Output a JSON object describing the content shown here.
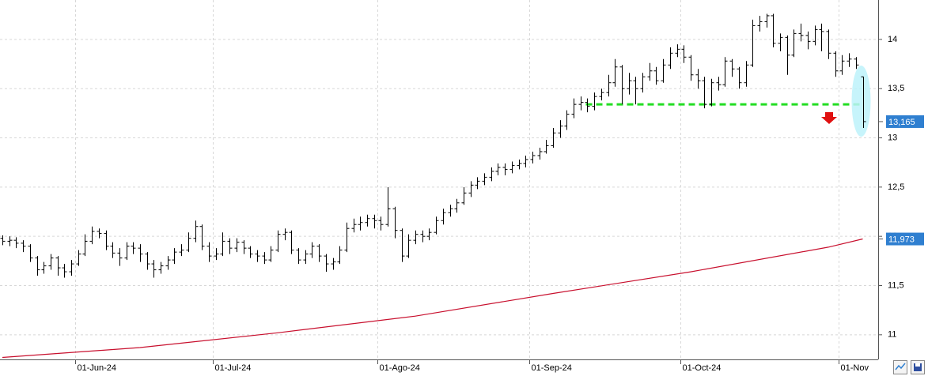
{
  "chart_data": {
    "type": "ohlc",
    "bar_color": "#000000",
    "grid": true,
    "categories": [
      null,
      null,
      null,
      null,
      null,
      null,
      null,
      null,
      null,
      null,
      null,
      "01-Jun-24",
      null,
      null,
      null,
      null,
      null,
      null,
      null,
      null,
      null,
      null,
      null,
      null,
      null,
      null,
      null,
      null,
      null,
      null,
      null,
      "01-Jul-24",
      null,
      null,
      null,
      null,
      null,
      null,
      null,
      null,
      null,
      null,
      null,
      null,
      null,
      null,
      null,
      null,
      null,
      null,
      null,
      null,
      null,
      null,
      null,
      "01-Ago-24",
      null,
      null,
      null,
      null,
      null,
      null,
      null,
      null,
      null,
      null,
      null,
      null,
      null,
      null,
      null,
      null,
      null,
      null,
      null,
      null,
      null,
      "01-Sep-24",
      null,
      null,
      null,
      null,
      null,
      null,
      null,
      null,
      null,
      null,
      null,
      null,
      null,
      null,
      null,
      null,
      null,
      null,
      null,
      null,
      null,
      "01-Oct-24",
      null,
      null,
      null,
      null,
      null,
      null,
      null,
      null,
      null,
      null,
      null,
      null,
      null,
      null,
      null,
      null,
      null,
      null,
      null,
      null,
      null,
      null,
      "01-Nov",
      null,
      null,
      null
    ],
    "ohlc": {
      "open": [
        11.98,
        11.95,
        11.96,
        11.93,
        11.9,
        11.78,
        11.66,
        11.7,
        11.78,
        11.68,
        11.64,
        11.72,
        11.82,
        11.95,
        12.05,
        12.03,
        11.9,
        11.83,
        11.78,
        11.9,
        11.88,
        11.82,
        11.72,
        11.66,
        11.7,
        11.76,
        11.84,
        11.86,
        11.98,
        12.1,
        11.9,
        11.8,
        11.82,
        11.95,
        11.88,
        11.94,
        11.88,
        11.82,
        11.8,
        11.76,
        11.86,
        12.02,
        12.04,
        11.86,
        11.76,
        11.82,
        11.9,
        11.8,
        11.72,
        11.74,
        11.86,
        12.08,
        12.12,
        12.14,
        12.18,
        12.16,
        12.12,
        12.28,
        12.06,
        11.8,
        11.96,
        12.02,
        12.0,
        12.04,
        12.16,
        12.24,
        12.28,
        12.34,
        12.44,
        12.52,
        12.56,
        12.6,
        12.66,
        12.7,
        12.68,
        12.72,
        12.74,
        12.78,
        12.82,
        12.86,
        12.92,
        13.05,
        13.12,
        13.24,
        13.34,
        13.36,
        13.32,
        13.42,
        13.46,
        13.56,
        13.72,
        13.5,
        13.58,
        13.5,
        13.62,
        13.68,
        13.58,
        13.74,
        13.86,
        13.9,
        13.82,
        13.64,
        13.58,
        13.34,
        13.56,
        13.54,
        13.78,
        13.7,
        13.56,
        13.74,
        14.14,
        14.18,
        14.24,
        13.96,
        14.02,
        13.84,
        14.06,
        14.04,
        13.98,
        14.1,
        14.08,
        13.86,
        13.68,
        13.78,
        13.8,
        13.62
      ],
      "high": [
        12.01,
        12.0,
        11.99,
        11.96,
        11.92,
        11.8,
        11.74,
        11.82,
        11.8,
        11.72,
        11.76,
        11.86,
        12.02,
        12.1,
        12.08,
        12.06,
        11.94,
        11.88,
        11.94,
        11.94,
        11.92,
        11.84,
        11.76,
        11.74,
        11.8,
        11.88,
        11.92,
        12.04,
        12.16,
        12.12,
        11.94,
        11.88,
        12.04,
        11.98,
        11.98,
        11.96,
        11.9,
        11.86,
        11.84,
        11.9,
        12.06,
        12.08,
        12.06,
        11.88,
        11.86,
        11.94,
        11.92,
        11.82,
        11.78,
        11.9,
        12.14,
        12.18,
        12.2,
        12.22,
        12.22,
        12.2,
        12.5,
        12.3,
        12.08,
        12.02,
        12.06,
        12.06,
        12.08,
        12.2,
        12.28,
        12.32,
        12.38,
        12.5,
        12.56,
        12.6,
        12.64,
        12.7,
        12.74,
        12.74,
        12.76,
        12.78,
        12.82,
        12.86,
        12.9,
        12.98,
        13.1,
        13.18,
        13.28,
        13.4,
        13.42,
        13.4,
        13.46,
        13.5,
        13.64,
        13.8,
        13.74,
        13.66,
        13.62,
        13.66,
        13.76,
        13.72,
        13.8,
        13.92,
        13.95,
        13.94,
        13.84,
        13.7,
        13.62,
        13.6,
        13.62,
        13.82,
        13.8,
        13.72,
        13.78,
        14.2,
        14.24,
        14.26,
        14.26,
        14.06,
        14.04,
        14.1,
        14.16,
        14.08,
        14.14,
        14.16,
        14.1,
        13.88,
        13.84,
        13.86,
        13.82,
        13.62
      ],
      "low": [
        11.91,
        11.9,
        11.88,
        11.84,
        11.74,
        11.6,
        11.62,
        11.66,
        11.6,
        11.58,
        11.6,
        11.7,
        11.8,
        11.92,
        11.98,
        11.86,
        11.78,
        11.7,
        11.76,
        11.82,
        11.74,
        11.66,
        11.58,
        11.62,
        11.66,
        11.72,
        11.8,
        11.84,
        11.94,
        11.86,
        11.74,
        11.76,
        11.8,
        11.82,
        11.84,
        11.82,
        11.78,
        11.74,
        11.72,
        11.74,
        11.84,
        11.96,
        11.82,
        11.72,
        11.72,
        11.78,
        11.74,
        11.64,
        11.66,
        11.72,
        11.84,
        12.04,
        12.06,
        12.1,
        12.08,
        12.06,
        12.1,
        11.98,
        11.74,
        11.78,
        11.92,
        11.94,
        11.96,
        12.02,
        12.12,
        12.2,
        12.24,
        12.32,
        12.4,
        12.48,
        12.52,
        12.56,
        12.62,
        12.62,
        12.64,
        12.68,
        12.7,
        12.74,
        12.78,
        12.84,
        12.9,
        13.0,
        13.08,
        13.2,
        13.28,
        13.26,
        13.28,
        13.38,
        13.42,
        13.52,
        13.34,
        13.44,
        13.34,
        13.46,
        13.58,
        13.54,
        13.56,
        13.7,
        13.82,
        13.76,
        13.58,
        13.5,
        13.3,
        13.32,
        13.48,
        13.52,
        13.62,
        13.5,
        13.52,
        13.72,
        14.08,
        14.12,
        13.92,
        13.88,
        13.64,
        13.82,
        13.98,
        13.9,
        13.94,
        13.88,
        13.8,
        13.62,
        13.64,
        13.72,
        13.7,
        13.1
      ],
      "close": [
        11.95,
        11.96,
        11.93,
        11.9,
        11.78,
        11.66,
        11.7,
        11.78,
        11.68,
        11.64,
        11.72,
        11.82,
        11.95,
        12.05,
        12.03,
        11.9,
        11.83,
        11.78,
        11.9,
        11.88,
        11.82,
        11.72,
        11.66,
        11.7,
        11.76,
        11.84,
        11.86,
        11.98,
        12.1,
        11.9,
        11.8,
        11.82,
        11.95,
        11.88,
        11.94,
        11.88,
        11.82,
        11.8,
        11.76,
        11.86,
        12.02,
        12.04,
        11.86,
        11.76,
        11.82,
        11.9,
        11.8,
        11.72,
        11.74,
        11.86,
        12.08,
        12.12,
        12.14,
        12.18,
        12.16,
        12.12,
        12.28,
        12.06,
        11.8,
        11.96,
        12.02,
        12.0,
        12.04,
        12.16,
        12.24,
        12.28,
        12.34,
        12.44,
        12.52,
        12.56,
        12.6,
        12.66,
        12.7,
        12.68,
        12.72,
        12.74,
        12.78,
        12.82,
        12.86,
        12.92,
        13.05,
        13.12,
        13.24,
        13.34,
        13.36,
        13.32,
        13.42,
        13.46,
        13.56,
        13.72,
        13.5,
        13.58,
        13.5,
        13.62,
        13.68,
        13.58,
        13.74,
        13.86,
        13.9,
        13.82,
        13.64,
        13.58,
        13.34,
        13.56,
        13.54,
        13.78,
        13.7,
        13.56,
        13.74,
        14.14,
        14.18,
        14.24,
        13.96,
        14.02,
        13.84,
        14.06,
        14.04,
        13.98,
        14.1,
        14.08,
        13.86,
        13.68,
        13.78,
        13.8,
        13.74,
        13.165
      ]
    },
    "ma": {
      "color": "#c8102e",
      "x": [
        0,
        20,
        40,
        60,
        80,
        100,
        120,
        125
      ],
      "values": [
        10.77,
        10.87,
        11.02,
        11.19,
        11.42,
        11.64,
        11.89,
        11.973
      ]
    },
    "support": {
      "value": 13.34,
      "color": "#22dd22"
    },
    "markers": [
      {
        "value": 13.165,
        "label": "13,165"
      },
      {
        "value": 11.973,
        "label": "11,973"
      }
    ],
    "marker_color": "#2f7fd0",
    "ylim": [
      10.75,
      14.4
    ],
    "yticks": [
      {
        "value": 11,
        "label": "11"
      },
      {
        "value": 11.5,
        "label": "11,5"
      },
      {
        "value": 12,
        "label": "12"
      },
      {
        "value": 12.5,
        "label": "12,5"
      },
      {
        "value": 13,
        "label": "13"
      },
      {
        "value": 13.5,
        "label": "13,5"
      },
      {
        "value": 14,
        "label": "14"
      }
    ]
  }
}
